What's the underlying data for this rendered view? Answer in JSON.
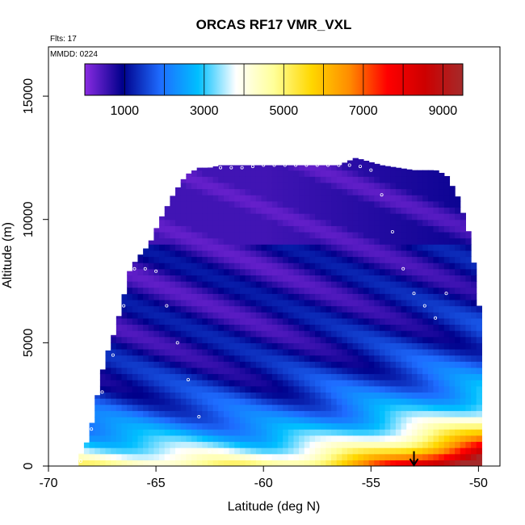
{
  "chart_data": {
    "type": "heatmap",
    "title": "ORCAS RF17 VMR_VXL",
    "notes": [
      "Flts: 17",
      "MMDD: 0224"
    ],
    "xlabel": "Latitude (deg N)",
    "ylabel": "Altitude (m)",
    "xlim": [
      -70,
      -49
    ],
    "ylim": [
      0,
      17000
    ],
    "xticks": [
      -70,
      -65,
      -60,
      -55,
      -50
    ],
    "xtick_labels": [
      "-70",
      "-65",
      "-60",
      "-55",
      "-50"
    ],
    "yticks": [
      0,
      5000,
      10000,
      15000
    ],
    "ytick_labels": [
      "0",
      "5000",
      "10000",
      "15000"
    ],
    "colorbar": {
      "range": [
        0,
        9500
      ],
      "ticks": [
        1000,
        3000,
        5000,
        7000,
        9000
      ],
      "tick_labels": [
        "1000",
        "3000",
        "5000",
        "7000",
        "9000"
      ],
      "placement": "top-inside",
      "colors": [
        "#8a2be2",
        "#00008b",
        "#1e6cff",
        "#00bfff",
        "#ffffff",
        "#ffff99",
        "#ffd700",
        "#ff8c00",
        "#ff0000",
        "#cd0000",
        "#a52a2a"
      ]
    },
    "envelope": {
      "lat": [
        -68.6,
        -68.2,
        -67.9,
        -67.6,
        -67.3,
        -66.9,
        -66.6,
        -66.2,
        -65.8,
        -65.3,
        -64.8,
        -64.2,
        -63.6,
        -63.0,
        -62.5,
        -62.0,
        -61.0,
        -59.5,
        -58.0,
        -56.5,
        -55.7,
        -54.5,
        -53.0,
        -52.0,
        -51.5,
        -51.0,
        -50.7,
        -50.3,
        -50.2,
        -50.0,
        -49.9,
        -49.9
      ],
      "top_altitude": [
        300,
        1000,
        2000,
        3500,
        4500,
        5500,
        6500,
        8000,
        8500,
        9000,
        10000,
        11000,
        11800,
        12100,
        12100,
        12200,
        12200,
        12200,
        12200,
        12200,
        12500,
        12200,
        12000,
        12000,
        11800,
        11000,
        10200,
        9000,
        8000,
        7000,
        5000,
        1000
      ]
    },
    "flight_track": {
      "lat": [
        -68.5,
        -68.0,
        -67.5,
        -67.0,
        -66.5,
        -66.0,
        -65.5,
        -65.0,
        -64.5,
        -64.0,
        -63.5,
        -63.0,
        -62.5,
        -62.0,
        -61.5,
        -61.0,
        -60.5,
        -60.0,
        -59.5,
        -59.0,
        -58.5,
        -58.0,
        -57.5,
        -57.0,
        -56.5,
        -56.0,
        -55.5,
        -55.0,
        -54.5,
        -54.0,
        -53.5,
        -53.0,
        -52.5,
        -52.0,
        -51.5,
        -51.0,
        -50.5,
        -50.0
      ],
      "altitude": [
        200,
        1500,
        3000,
        4500,
        6500,
        8000,
        8000,
        7900,
        6500,
        5000,
        3500,
        2000,
        600,
        12100,
        12100,
        12100,
        12150,
        12200,
        12200,
        12200,
        12200,
        12200,
        12200,
        12200,
        12200,
        12200,
        12150,
        12000,
        11000,
        9500,
        8000,
        7000,
        6500,
        6000,
        7000,
        11900,
        12000,
        12000
      ]
    },
    "marker": {
      "lat": -53,
      "label": "arrow"
    }
  }
}
